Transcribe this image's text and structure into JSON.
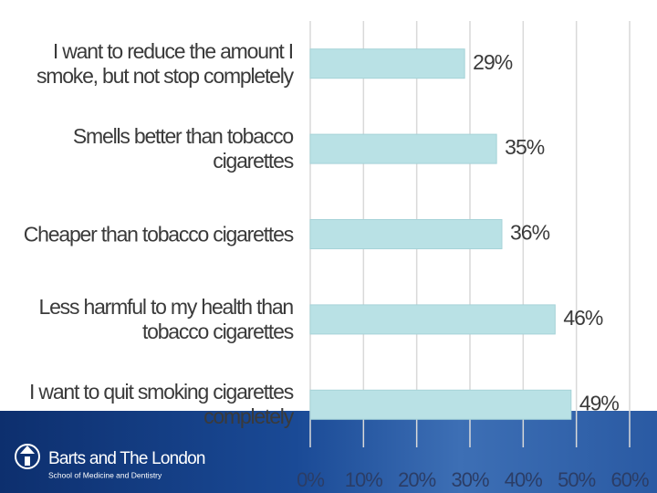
{
  "chart_data": {
    "type": "barh",
    "categories": [
      "I want to reduce the amount I smoke, but not stop completely",
      "Smells better than tobacco cigarettes",
      "Cheaper than tobacco cigarettes",
      "Less harmful to my health than tobacco cigarettes",
      "I want to quit smoking cigarettes completely"
    ],
    "values": [
      29,
      35,
      36,
      46,
      49
    ],
    "value_labels": [
      "29%",
      "35%",
      "36%",
      "46%",
      "49%"
    ],
    "color": "#b9e1e5",
    "xlim": [
      0,
      60
    ],
    "xticks": [
      {
        "value": 0,
        "label": "0%"
      },
      {
        "value": 10,
        "label": "10%"
      },
      {
        "value": 20,
        "label": "20%"
      },
      {
        "value": 30,
        "label": "30%"
      },
      {
        "value": 40,
        "label": "40%"
      },
      {
        "value": 50,
        "label": "50%"
      },
      {
        "value": 60,
        "label": "60%"
      }
    ],
    "grid": true
  },
  "footer": {
    "title": "Barts and The London",
    "subtitle": "School of Medicine and Dentistry"
  }
}
